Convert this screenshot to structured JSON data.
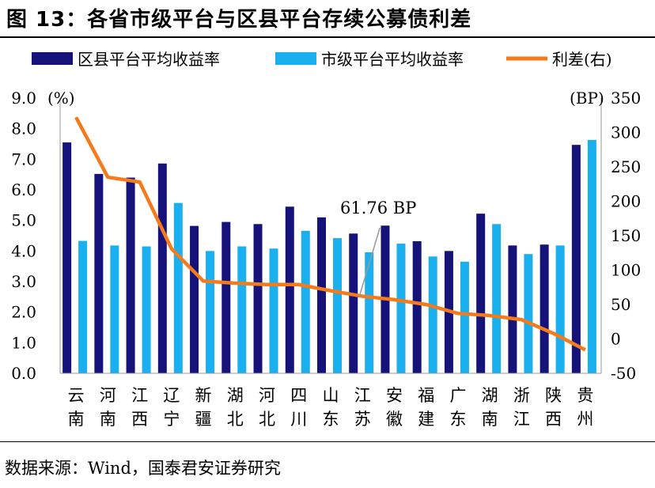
{
  "title": "图 13：各省市级平台与区县平台存续公募债利差",
  "source": "数据来源：Wind，国泰君安证券研究",
  "colors": {
    "county": "#15137a",
    "city": "#1ab0f0",
    "spread": "#f47a1c"
  },
  "chart_data": {
    "type": "bar",
    "categories": [
      "云南",
      "河南",
      "江西",
      "辽宁",
      "新疆",
      "湖北",
      "河北",
      "四川",
      "山东",
      "江苏",
      "安徽",
      "福建",
      "广东",
      "湖南",
      "浙江",
      "陕西",
      "贵州"
    ],
    "category_lines": [
      [
        "云",
        "南"
      ],
      [
        "河",
        "南"
      ],
      [
        "江",
        "西"
      ],
      [
        "辽",
        "宁"
      ],
      [
        "新",
        "疆"
      ],
      [
        "湖",
        "北"
      ],
      [
        "河",
        "北"
      ],
      [
        "四",
        "川"
      ],
      [
        "山",
        "东"
      ],
      [
        "江",
        "苏"
      ],
      [
        "安",
        "徽"
      ],
      [
        "福",
        "建"
      ],
      [
        "广",
        "东"
      ],
      [
        "湖",
        "南"
      ],
      [
        "浙",
        "江"
      ],
      [
        "陕",
        "西"
      ],
      [
        "贵",
        "州"
      ]
    ],
    "series": [
      {
        "name": "区县平台平均收益率",
        "type": "bar",
        "axis": "left",
        "values": [
          7.55,
          6.52,
          6.4,
          6.86,
          4.82,
          4.95,
          4.88,
          5.45,
          5.1,
          4.57,
          4.83,
          4.32,
          4.0,
          5.22,
          4.18,
          4.21,
          7.47
        ]
      },
      {
        "name": "市级平台平均收益率",
        "type": "bar",
        "axis": "left",
        "values": [
          4.33,
          4.18,
          4.15,
          5.57,
          4.0,
          4.15,
          4.08,
          4.66,
          4.42,
          3.96,
          4.24,
          3.82,
          3.65,
          4.88,
          3.9,
          4.18,
          7.63
        ]
      },
      {
        "name": "利差(右)",
        "type": "line",
        "axis": "right",
        "values": [
          322,
          235,
          228,
          131,
          84,
          81,
          79,
          79,
          70,
          62,
          57,
          50,
          37,
          34,
          28,
          8,
          -16
        ]
      }
    ],
    "left_axis": {
      "unit": "(%)",
      "ylim": [
        0,
        9
      ],
      "ticks": [
        "0.0",
        "1.0",
        "2.0",
        "3.0",
        "4.0",
        "5.0",
        "6.0",
        "7.0",
        "8.0",
        "9.0"
      ]
    },
    "right_axis": {
      "unit": "(BP)",
      "ylim": [
        -50,
        350
      ],
      "ticks": [
        "-50",
        "0",
        "50",
        "100",
        "150",
        "200",
        "250",
        "300",
        "350"
      ]
    },
    "annotation": {
      "text": "61.76 BP",
      "category": "江苏",
      "value": 61.76
    },
    "legend_position": "top",
    "grid": false
  }
}
